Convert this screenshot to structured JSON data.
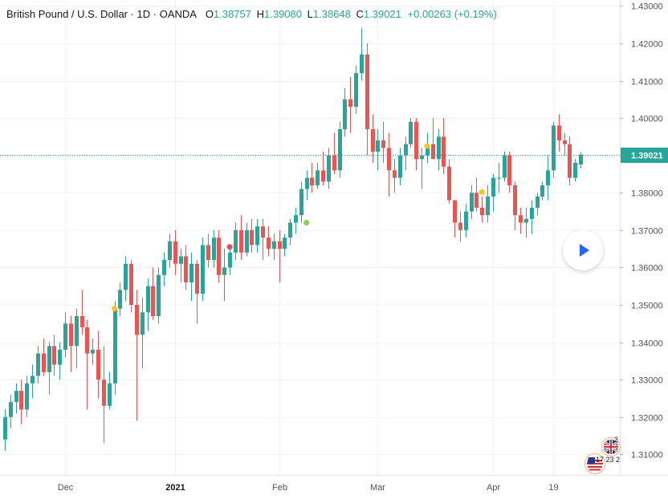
{
  "legend": {
    "title": "British Pound / U.S. Dollar · 1D · OANDA",
    "open_label": "O",
    "open": "1.38757",
    "high_label": "H",
    "high": "1.39080",
    "low_label": "L",
    "low": "1.38648",
    "close_label": "C",
    "close": "1.39021",
    "change": "+0.00263 (+0.19%)"
  },
  "colors": {
    "up": "#26a69a",
    "down": "#ef5350",
    "last_price": "#26a69a",
    "marker_yellow": "#f5c518",
    "marker_green": "#8bd14a",
    "marker_red": "#e84a5f"
  },
  "events": {
    "uk_count": "2",
    "us_counts": "17 23 2"
  },
  "icons": {
    "play": "play-icon",
    "uk_flag": "uk-flag-icon",
    "us_flag": "us-flag-icon"
  },
  "chart_data": {
    "type": "candlestick",
    "ylim": [
      1.3045,
      1.4305
    ],
    "y_ticks": [
      "1.31000",
      "1.32000",
      "1.33000",
      "1.34000",
      "1.35000",
      "1.36000",
      "1.37000",
      "1.38000",
      "1.39000",
      "1.40000",
      "1.41000",
      "1.42000",
      "1.43000"
    ],
    "x_ticks": [
      {
        "label": "Dec",
        "index": 11,
        "bold": false
      },
      {
        "label": "2021",
        "index": 31,
        "bold": true
      },
      {
        "label": "Feb",
        "index": 50,
        "bold": false
      },
      {
        "label": "Mar",
        "index": 68,
        "bold": false
      },
      {
        "label": "Apr",
        "index": 89,
        "bold": false
      },
      {
        "label": "19",
        "index": 100,
        "bold": false
      }
    ],
    "last_price": "1.39021",
    "grid": true,
    "markers": [
      {
        "index": 20,
        "price": 1.349,
        "color": "yellow"
      },
      {
        "index": 41,
        "price": 1.3655,
        "color": "red"
      },
      {
        "index": 55,
        "price": 1.372,
        "color": "green"
      },
      {
        "index": 77,
        "price": 1.3925,
        "color": "yellow"
      },
      {
        "index": 87,
        "price": 1.3802,
        "color": "yellow"
      }
    ],
    "candles": [
      [
        1.314,
        1.322,
        1.311,
        1.32
      ],
      [
        1.32,
        1.326,
        1.317,
        1.324
      ],
      [
        1.324,
        1.329,
        1.321,
        1.327
      ],
      [
        1.327,
        1.33,
        1.318,
        1.322
      ],
      [
        1.322,
        1.331,
        1.32,
        1.329
      ],
      [
        1.329,
        1.334,
        1.325,
        1.331
      ],
      [
        1.331,
        1.339,
        1.329,
        1.337
      ],
      [
        1.337,
        1.341,
        1.331,
        1.332
      ],
      [
        1.332,
        1.34,
        1.326,
        1.339
      ],
      [
        1.339,
        1.342,
        1.331,
        1.334
      ],
      [
        1.334,
        1.34,
        1.33,
        1.338
      ],
      [
        1.338,
        1.348,
        1.336,
        1.345
      ],
      [
        1.345,
        1.347,
        1.332,
        1.339
      ],
      [
        1.339,
        1.349,
        1.333,
        1.347
      ],
      [
        1.347,
        1.354,
        1.342,
        1.344
      ],
      [
        1.344,
        1.346,
        1.322,
        1.337
      ],
      [
        1.337,
        1.341,
        1.334,
        1.338
      ],
      [
        1.338,
        1.343,
        1.325,
        1.33
      ],
      [
        1.33,
        1.339,
        1.313,
        1.323
      ],
      [
        1.323,
        1.332,
        1.322,
        1.329
      ],
      [
        1.329,
        1.351,
        1.326,
        1.349
      ],
      [
        1.349,
        1.356,
        1.347,
        1.354
      ],
      [
        1.354,
        1.363,
        1.351,
        1.361
      ],
      [
        1.361,
        1.362,
        1.348,
        1.35
      ],
      [
        1.35,
        1.354,
        1.319,
        1.342
      ],
      [
        1.342,
        1.352,
        1.333,
        1.348
      ],
      [
        1.348,
        1.357,
        1.343,
        1.355
      ],
      [
        1.355,
        1.36,
        1.346,
        1.347
      ],
      [
        1.347,
        1.36,
        1.345,
        1.358
      ],
      [
        1.358,
        1.364,
        1.355,
        1.362
      ],
      [
        1.362,
        1.369,
        1.36,
        1.367
      ],
      [
        1.367,
        1.37,
        1.358,
        1.361
      ],
      [
        1.361,
        1.365,
        1.356,
        1.363
      ],
      [
        1.363,
        1.366,
        1.354,
        1.356
      ],
      [
        1.356,
        1.364,
        1.351,
        1.361
      ],
      [
        1.361,
        1.362,
        1.345,
        1.353
      ],
      [
        1.353,
        1.368,
        1.351,
        1.366
      ],
      [
        1.366,
        1.369,
        1.36,
        1.362
      ],
      [
        1.362,
        1.37,
        1.36,
        1.368
      ],
      [
        1.368,
        1.37,
        1.356,
        1.358
      ],
      [
        1.358,
        1.365,
        1.351,
        1.36
      ],
      [
        1.36,
        1.366,
        1.358,
        1.364
      ],
      [
        1.364,
        1.372,
        1.362,
        1.37
      ],
      [
        1.37,
        1.374,
        1.362,
        1.364
      ],
      [
        1.364,
        1.372,
        1.363,
        1.37
      ],
      [
        1.37,
        1.373,
        1.364,
        1.366
      ],
      [
        1.366,
        1.373,
        1.364,
        1.371
      ],
      [
        1.371,
        1.373,
        1.362,
        1.368
      ],
      [
        1.368,
        1.371,
        1.363,
        1.365
      ],
      [
        1.365,
        1.369,
        1.362,
        1.367
      ],
      [
        1.367,
        1.37,
        1.356,
        1.365
      ],
      [
        1.365,
        1.369,
        1.363,
        1.368
      ],
      [
        1.368,
        1.373,
        1.366,
        1.372
      ],
      [
        1.372,
        1.376,
        1.369,
        1.374
      ],
      [
        1.374,
        1.383,
        1.372,
        1.381
      ],
      [
        1.381,
        1.386,
        1.378,
        1.384
      ],
      [
        1.384,
        1.388,
        1.38,
        1.382
      ],
      [
        1.382,
        1.388,
        1.381,
        1.386
      ],
      [
        1.386,
        1.391,
        1.382,
        1.383
      ],
      [
        1.383,
        1.392,
        1.381,
        1.39
      ],
      [
        1.39,
        1.396,
        1.385,
        1.386
      ],
      [
        1.386,
        1.399,
        1.384,
        1.397
      ],
      [
        1.397,
        1.408,
        1.395,
        1.405
      ],
      [
        1.405,
        1.411,
        1.396,
        1.403
      ],
      [
        1.403,
        1.414,
        1.401,
        1.412
      ],
      [
        1.412,
        1.424,
        1.41,
        1.417
      ],
      [
        1.417,
        1.42,
        1.39,
        1.397
      ],
      [
        1.397,
        1.401,
        1.388,
        1.391
      ],
      [
        1.391,
        1.397,
        1.386,
        1.394
      ],
      [
        1.394,
        1.399,
        1.388,
        1.392
      ],
      [
        1.392,
        1.396,
        1.379,
        1.386
      ],
      [
        1.386,
        1.389,
        1.38,
        1.384
      ],
      [
        1.384,
        1.392,
        1.382,
        1.39
      ],
      [
        1.39,
        1.395,
        1.386,
        1.393
      ],
      [
        1.393,
        1.4,
        1.392,
        1.399
      ],
      [
        1.399,
        1.4,
        1.386,
        1.389
      ],
      [
        1.389,
        1.392,
        1.381,
        1.39
      ],
      [
        1.39,
        1.396,
        1.388,
        1.393
      ],
      [
        1.393,
        1.4,
        1.389,
        1.389
      ],
      [
        1.389,
        1.397,
        1.386,
        1.395
      ],
      [
        1.395,
        1.4,
        1.385,
        1.387
      ],
      [
        1.387,
        1.389,
        1.377,
        1.378
      ],
      [
        1.378,
        1.378,
        1.368,
        1.372
      ],
      [
        1.372,
        1.375,
        1.367,
        1.37
      ],
      [
        1.37,
        1.377,
        1.368,
        1.375
      ],
      [
        1.375,
        1.382,
        1.373,
        1.38
      ],
      [
        1.38,
        1.384,
        1.375,
        1.376
      ],
      [
        1.376,
        1.379,
        1.372,
        1.374
      ],
      [
        1.374,
        1.382,
        1.372,
        1.379
      ],
      [
        1.379,
        1.385,
        1.375,
        1.384
      ],
      [
        1.384,
        1.388,
        1.38,
        1.384
      ],
      [
        1.384,
        1.391,
        1.383,
        1.39
      ],
      [
        1.39,
        1.391,
        1.38,
        1.382
      ],
      [
        1.382,
        1.383,
        1.37,
        1.374
      ],
      [
        1.374,
        1.376,
        1.369,
        1.372
      ],
      [
        1.372,
        1.376,
        1.368,
        1.373
      ],
      [
        1.373,
        1.378,
        1.369,
        1.376
      ],
      [
        1.376,
        1.38,
        1.374,
        1.379
      ],
      [
        1.379,
        1.383,
        1.378,
        1.382
      ],
      [
        1.382,
        1.39,
        1.378,
        1.386
      ],
      [
        1.386,
        1.399,
        1.384,
        1.398
      ],
      [
        1.398,
        1.401,
        1.391,
        1.394
      ],
      [
        1.394,
        1.396,
        1.39,
        1.393
      ],
      [
        1.393,
        1.395,
        1.382,
        1.384
      ],
      [
        1.384,
        1.389,
        1.383,
        1.388
      ],
      [
        1.38757,
        1.3908,
        1.38648,
        1.39021
      ]
    ]
  }
}
